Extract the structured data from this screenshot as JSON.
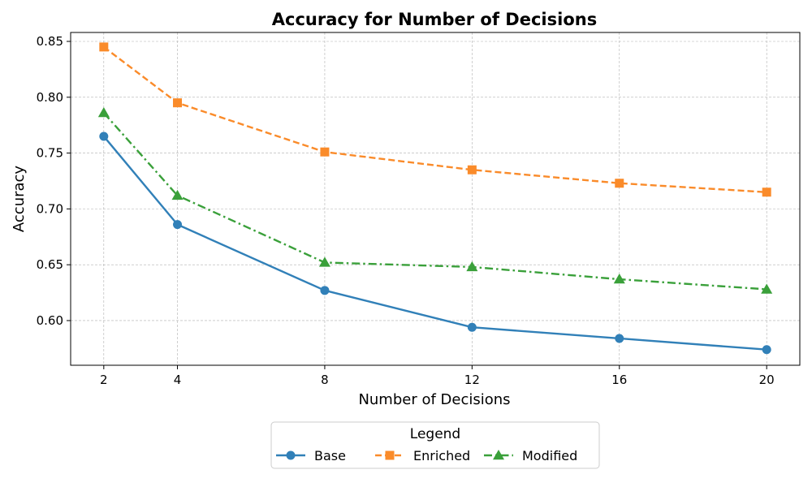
{
  "chart_data": {
    "type": "line",
    "title": "Accuracy for Number of Decisions",
    "xlabel": "Number of Decisions",
    "ylabel": "Accuracy",
    "x": [
      2,
      4,
      8,
      12,
      16,
      20
    ],
    "xticks": [
      "2",
      "4",
      "8",
      "12",
      "16",
      "20"
    ],
    "xlim": [
      1.1,
      20.9
    ],
    "ylim": [
      0.56,
      0.858
    ],
    "yticks": [
      "0.60",
      "0.65",
      "0.70",
      "0.75",
      "0.80",
      "0.85"
    ],
    "grid": true,
    "legend": {
      "title": "Legend",
      "placement": "bottom-center, below plot"
    },
    "series": [
      {
        "name": "Base",
        "color": "#3180b8",
        "linestyle": "solid",
        "marker": "circle",
        "values": [
          0.765,
          0.686,
          0.627,
          0.594,
          0.584,
          0.574
        ]
      },
      {
        "name": "Enriched",
        "color": "#fa8b2a",
        "linestyle": "dashed",
        "marker": "square",
        "values": [
          0.845,
          0.795,
          0.751,
          0.735,
          0.723,
          0.715
        ]
      },
      {
        "name": "Modified",
        "color": "#3aa03a",
        "linestyle": "dashdot",
        "marker": "triangle",
        "values": [
          0.786,
          0.712,
          0.652,
          0.648,
          0.637,
          0.628
        ]
      }
    ]
  }
}
